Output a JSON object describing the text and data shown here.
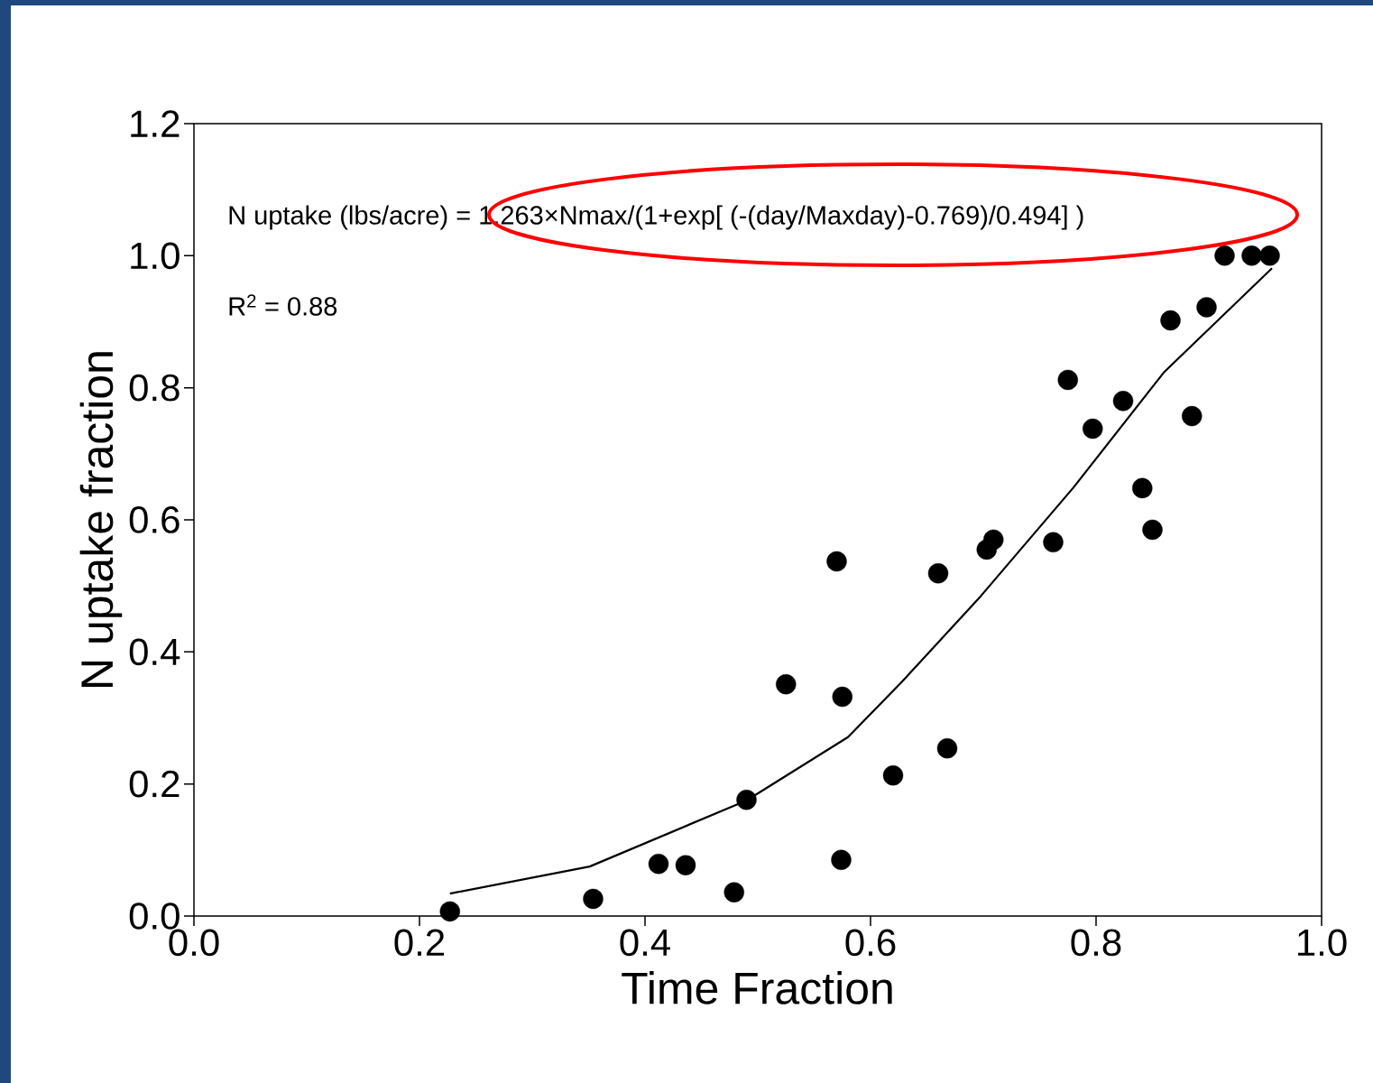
{
  "chart_data": {
    "type": "scatter",
    "xlabel": "Time Fraction",
    "ylabel": "N uptake fraction",
    "xlim": [
      0,
      1
    ],
    "ylim": [
      0,
      1.2
    ],
    "xticks": [
      {
        "value": 0,
        "label": "0.0"
      },
      0.2,
      0.4,
      0.6,
      0.8,
      {
        "value": 1,
        "label": "1.0"
      }
    ],
    "yticks": [
      {
        "value": 0,
        "label": "0.0"
      },
      0.2,
      0.4,
      0.6,
      0.8,
      {
        "value": 1,
        "label": "1.0"
      },
      1.2
    ],
    "grid": false,
    "annotations": [
      "N uptake (lbs/acre) = 1.263×Nmax/(1+exp[ (-(day/Maxday)-0.769)/0.494] )",
      "R$^{2}$ = 0.88"
    ],
    "series": [
      {
        "marker": "circle",
        "color": "#000000",
        "x": [
          0.227,
          0.354,
          0.412,
          0.436,
          0.479,
          0.49,
          0.525,
          0.57,
          0.574,
          0.575,
          0.62,
          0.66,
          0.668,
          0.703,
          0.709,
          0.762,
          0.775,
          0.797,
          0.824,
          0.841,
          0.85,
          0.866,
          0.885,
          0.898,
          0.914,
          0.938,
          0.954
        ],
        "values": [
          0.007,
          0.026,
          0.079,
          0.077,
          0.036,
          0.176,
          0.351,
          0.537,
          0.085,
          0.332,
          0.213,
          0.519,
          0.254,
          0.555,
          0.57,
          0.566,
          0.812,
          0.738,
          0.78,
          0.648,
          0.585,
          0.902,
          0.757,
          0.922,
          1.0,
          1.0,
          1.0
        ]
      },
      {
        "type": "line",
        "marker": "none",
        "line_style": "solid",
        "color": "#000000",
        "x": [
          0.227,
          0.351,
          0.49,
          0.58,
          0.628,
          0.698,
          0.78,
          0.86,
          0.956
        ],
        "values": [
          0.034,
          0.075,
          0.175,
          0.271,
          0.355,
          0.485,
          0.649,
          0.823,
          0.981
        ]
      }
    ]
  }
}
